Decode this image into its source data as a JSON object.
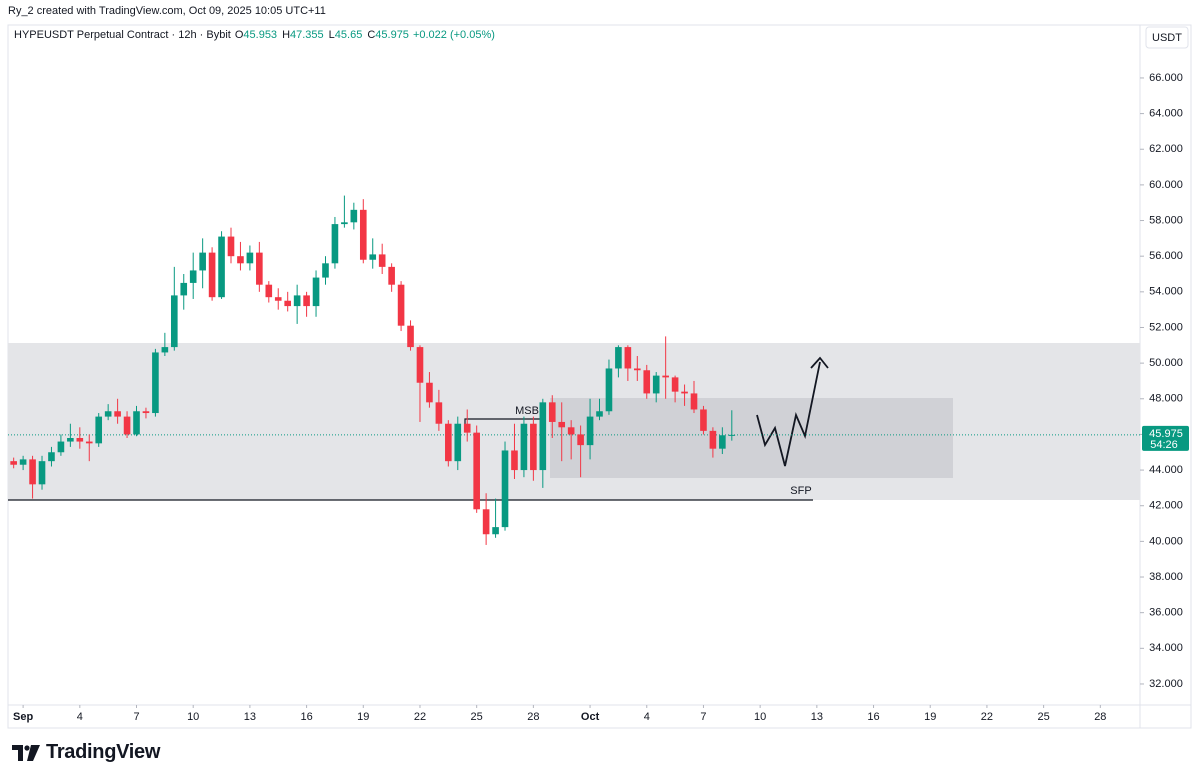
{
  "header": {
    "credit": "Ry_2 created with TradingView.com, Oct 09, 2025 10:05 UTC+11"
  },
  "brand": "TradingView",
  "chart_data": {
    "type": "candlestick",
    "title": "HYPEUSDT Perpetual Contract · 12h · Bybit",
    "ohlc_legend": [
      {
        "label": "O",
        "value": 45.953
      },
      {
        "label": "H",
        "value": 47.355
      },
      {
        "label": "L",
        "value": 45.65
      },
      {
        "label": "C",
        "value": 45.975
      }
    ],
    "change": "+0.022 (+0.05%)",
    "currency": "USDT",
    "last_price": 45.975,
    "countdown": "54:26",
    "annotations": [
      "MSB",
      "SFP"
    ],
    "up_color": "#089981",
    "down_color": "#f23645",
    "grid": false,
    "x": [
      0.5,
      1,
      1.5,
      2,
      2.5,
      3,
      3.5,
      4,
      4.5,
      5,
      5.5,
      6,
      6.5,
      7,
      7.5,
      8,
      8.5,
      9,
      9.5,
      10,
      10.5,
      11,
      11.5,
      12,
      12.5,
      13,
      13.5,
      14,
      14.5,
      15,
      15.5,
      16,
      16.5,
      17,
      17.5,
      18,
      18.5,
      19,
      19.5,
      20,
      20.5,
      21,
      21.5,
      22,
      22.5,
      23,
      23.5,
      24,
      24.5,
      25,
      25.5,
      26,
      26.5,
      27,
      27.5,
      28,
      28.5,
      29,
      29.5,
      30,
      30.5,
      31,
      31.5,
      32,
      32.5,
      33,
      33.5,
      34,
      34.5,
      35,
      35.5,
      36,
      36.5,
      37,
      37.5,
      38,
      38.5
    ],
    "open": [
      44.5,
      44.3,
      44.6,
      43.2,
      44.5,
      45.0,
      45.6,
      45.8,
      45.6,
      45.5,
      47.0,
      47.3,
      47.0,
      46.0,
      47.3,
      47.2,
      50.6,
      50.9,
      53.8,
      54.5,
      55.2,
      56.2,
      53.7,
      57.1,
      56.0,
      55.6,
      56.2,
      54.4,
      53.7,
      53.5,
      53.2,
      53.8,
      53.2,
      54.8,
      55.6,
      57.8,
      57.9,
      58.6,
      55.8,
      56.1,
      55.4,
      54.4,
      52.1,
      50.9,
      48.9,
      47.8,
      46.6,
      44.5,
      46.6,
      46.1,
      41.8,
      40.4,
      40.8,
      45.1,
      44.0,
      46.6,
      44.0,
      47.8,
      46.7,
      46.4,
      46.0,
      45.4,
      47.0,
      47.3,
      49.7,
      50.9,
      49.7,
      49.6,
      48.3,
      49.3,
      49.2,
      48.4,
      48.3,
      47.4,
      46.2,
      45.2,
      45.953
    ],
    "high": [
      44.7,
      44.8,
      44.8,
      44.8,
      45.3,
      46.0,
      46.6,
      46.4,
      46.0,
      47.2,
      47.7,
      48.0,
      47.3,
      47.6,
      47.5,
      50.8,
      51.7,
      55.4,
      55.0,
      56.2,
      57.0,
      56.5,
      57.4,
      57.6,
      56.8,
      56.6,
      56.8,
      54.6,
      54.2,
      54.0,
      54.4,
      54.0,
      55.2,
      56.0,
      58.2,
      59.4,
      59.0,
      59.2,
      57.0,
      56.7,
      55.6,
      54.6,
      52.4,
      51.0,
      49.5,
      48.5,
      46.8,
      47.0,
      47.4,
      46.5,
      42.7,
      42.4,
      45.6,
      46.6,
      47.0,
      47.0,
      48.0,
      48.2,
      47.8,
      46.8,
      46.5,
      48.0,
      48.0,
      50.2,
      51.0,
      51.0,
      50.4,
      49.9,
      49.5,
      51.5,
      49.3,
      48.8,
      49.0,
      47.6,
      46.4,
      46.4,
      47.355
    ],
    "low": [
      44.1,
      44.0,
      42.4,
      42.9,
      44.2,
      44.8,
      45.3,
      45.2,
      44.5,
      45.3,
      46.8,
      46.6,
      45.8,
      45.9,
      46.9,
      47.0,
      50.4,
      50.7,
      53.0,
      53.6,
      54.2,
      53.5,
      53.6,
      55.6,
      55.2,
      55.2,
      54.0,
      53.4,
      53.0,
      52.9,
      52.2,
      52.6,
      52.6,
      54.4,
      55.3,
      57.6,
      57.5,
      55.6,
      55.3,
      55.0,
      54.0,
      51.8,
      50.7,
      46.7,
      47.5,
      46.2,
      44.2,
      44.0,
      45.6,
      41.6,
      39.8,
      40.2,
      40.6,
      43.5,
      43.6,
      43.4,
      43.0,
      45.8,
      44.5,
      44.6,
      43.6,
      44.6,
      46.8,
      47.1,
      49.2,
      49.0,
      49.0,
      48.0,
      47.8,
      48.0,
      47.8,
      47.6,
      47.2,
      46.0,
      44.7,
      44.9,
      45.65
    ],
    "close": [
      44.3,
      44.6,
      43.2,
      44.5,
      45.0,
      45.6,
      45.8,
      45.6,
      45.5,
      47.0,
      47.3,
      47.0,
      46.0,
      47.3,
      47.2,
      50.6,
      50.9,
      53.8,
      54.5,
      55.2,
      56.2,
      53.7,
      57.1,
      56.0,
      55.6,
      56.2,
      54.4,
      53.7,
      53.5,
      53.2,
      53.8,
      53.2,
      54.8,
      55.6,
      57.8,
      57.9,
      58.6,
      55.8,
      56.1,
      55.4,
      54.4,
      52.1,
      50.9,
      48.9,
      47.8,
      46.6,
      44.5,
      46.6,
      46.1,
      41.8,
      40.4,
      40.8,
      45.1,
      44.0,
      46.6,
      44.0,
      47.8,
      46.7,
      46.4,
      46.0,
      45.4,
      47.0,
      47.3,
      49.7,
      50.9,
      49.7,
      49.6,
      48.3,
      49.3,
      49.2,
      48.4,
      48.3,
      47.4,
      46.2,
      45.2,
      45.953,
      45.975
    ],
    "xlim": [
      0.2,
      60.1
    ],
    "ylim": [
      30.82,
      68.97
    ],
    "xticks": [
      {
        "value": 1,
        "label": "Sep"
      },
      4,
      7,
      10,
      13,
      16,
      19,
      22,
      25,
      28,
      {
        "value": 31,
        "label": "Oct"
      },
      {
        "value": 34,
        "label": "4"
      },
      {
        "value": 37,
        "label": "7"
      },
      {
        "value": 40,
        "label": "10"
      },
      {
        "value": 43,
        "label": "13"
      },
      {
        "value": 46,
        "label": "16"
      },
      {
        "value": 49,
        "label": "19"
      },
      {
        "value": 52,
        "label": "22"
      },
      {
        "value": 55,
        "label": "25"
      },
      {
        "value": 58,
        "label": "28"
      }
    ],
    "yticks": [
      {
        "value": 32,
        "label": "32.000"
      },
      {
        "value": 34,
        "label": "34.000"
      },
      {
        "value": 36,
        "label": "36.000"
      },
      {
        "value": 38,
        "label": "38.000"
      },
      {
        "value": 40,
        "label": "40.000"
      },
      {
        "value": 42,
        "label": "42.000"
      },
      {
        "value": 44,
        "label": "44.000"
      },
      {
        "value": 46,
        "label": "46.000"
      },
      {
        "value": 48,
        "label": "48.000"
      },
      {
        "value": 50,
        "label": "50.000"
      },
      {
        "value": 52,
        "label": "52.000"
      },
      {
        "value": 54,
        "label": "54.000"
      },
      {
        "value": 56,
        "label": "56.000"
      },
      {
        "value": 58,
        "label": "58.000"
      },
      {
        "value": 60,
        "label": "60.000"
      },
      {
        "value": 62,
        "label": "62.000"
      },
      {
        "value": 64,
        "label": "64.000"
      },
      {
        "value": 66,
        "label": "66.000"
      }
    ]
  }
}
